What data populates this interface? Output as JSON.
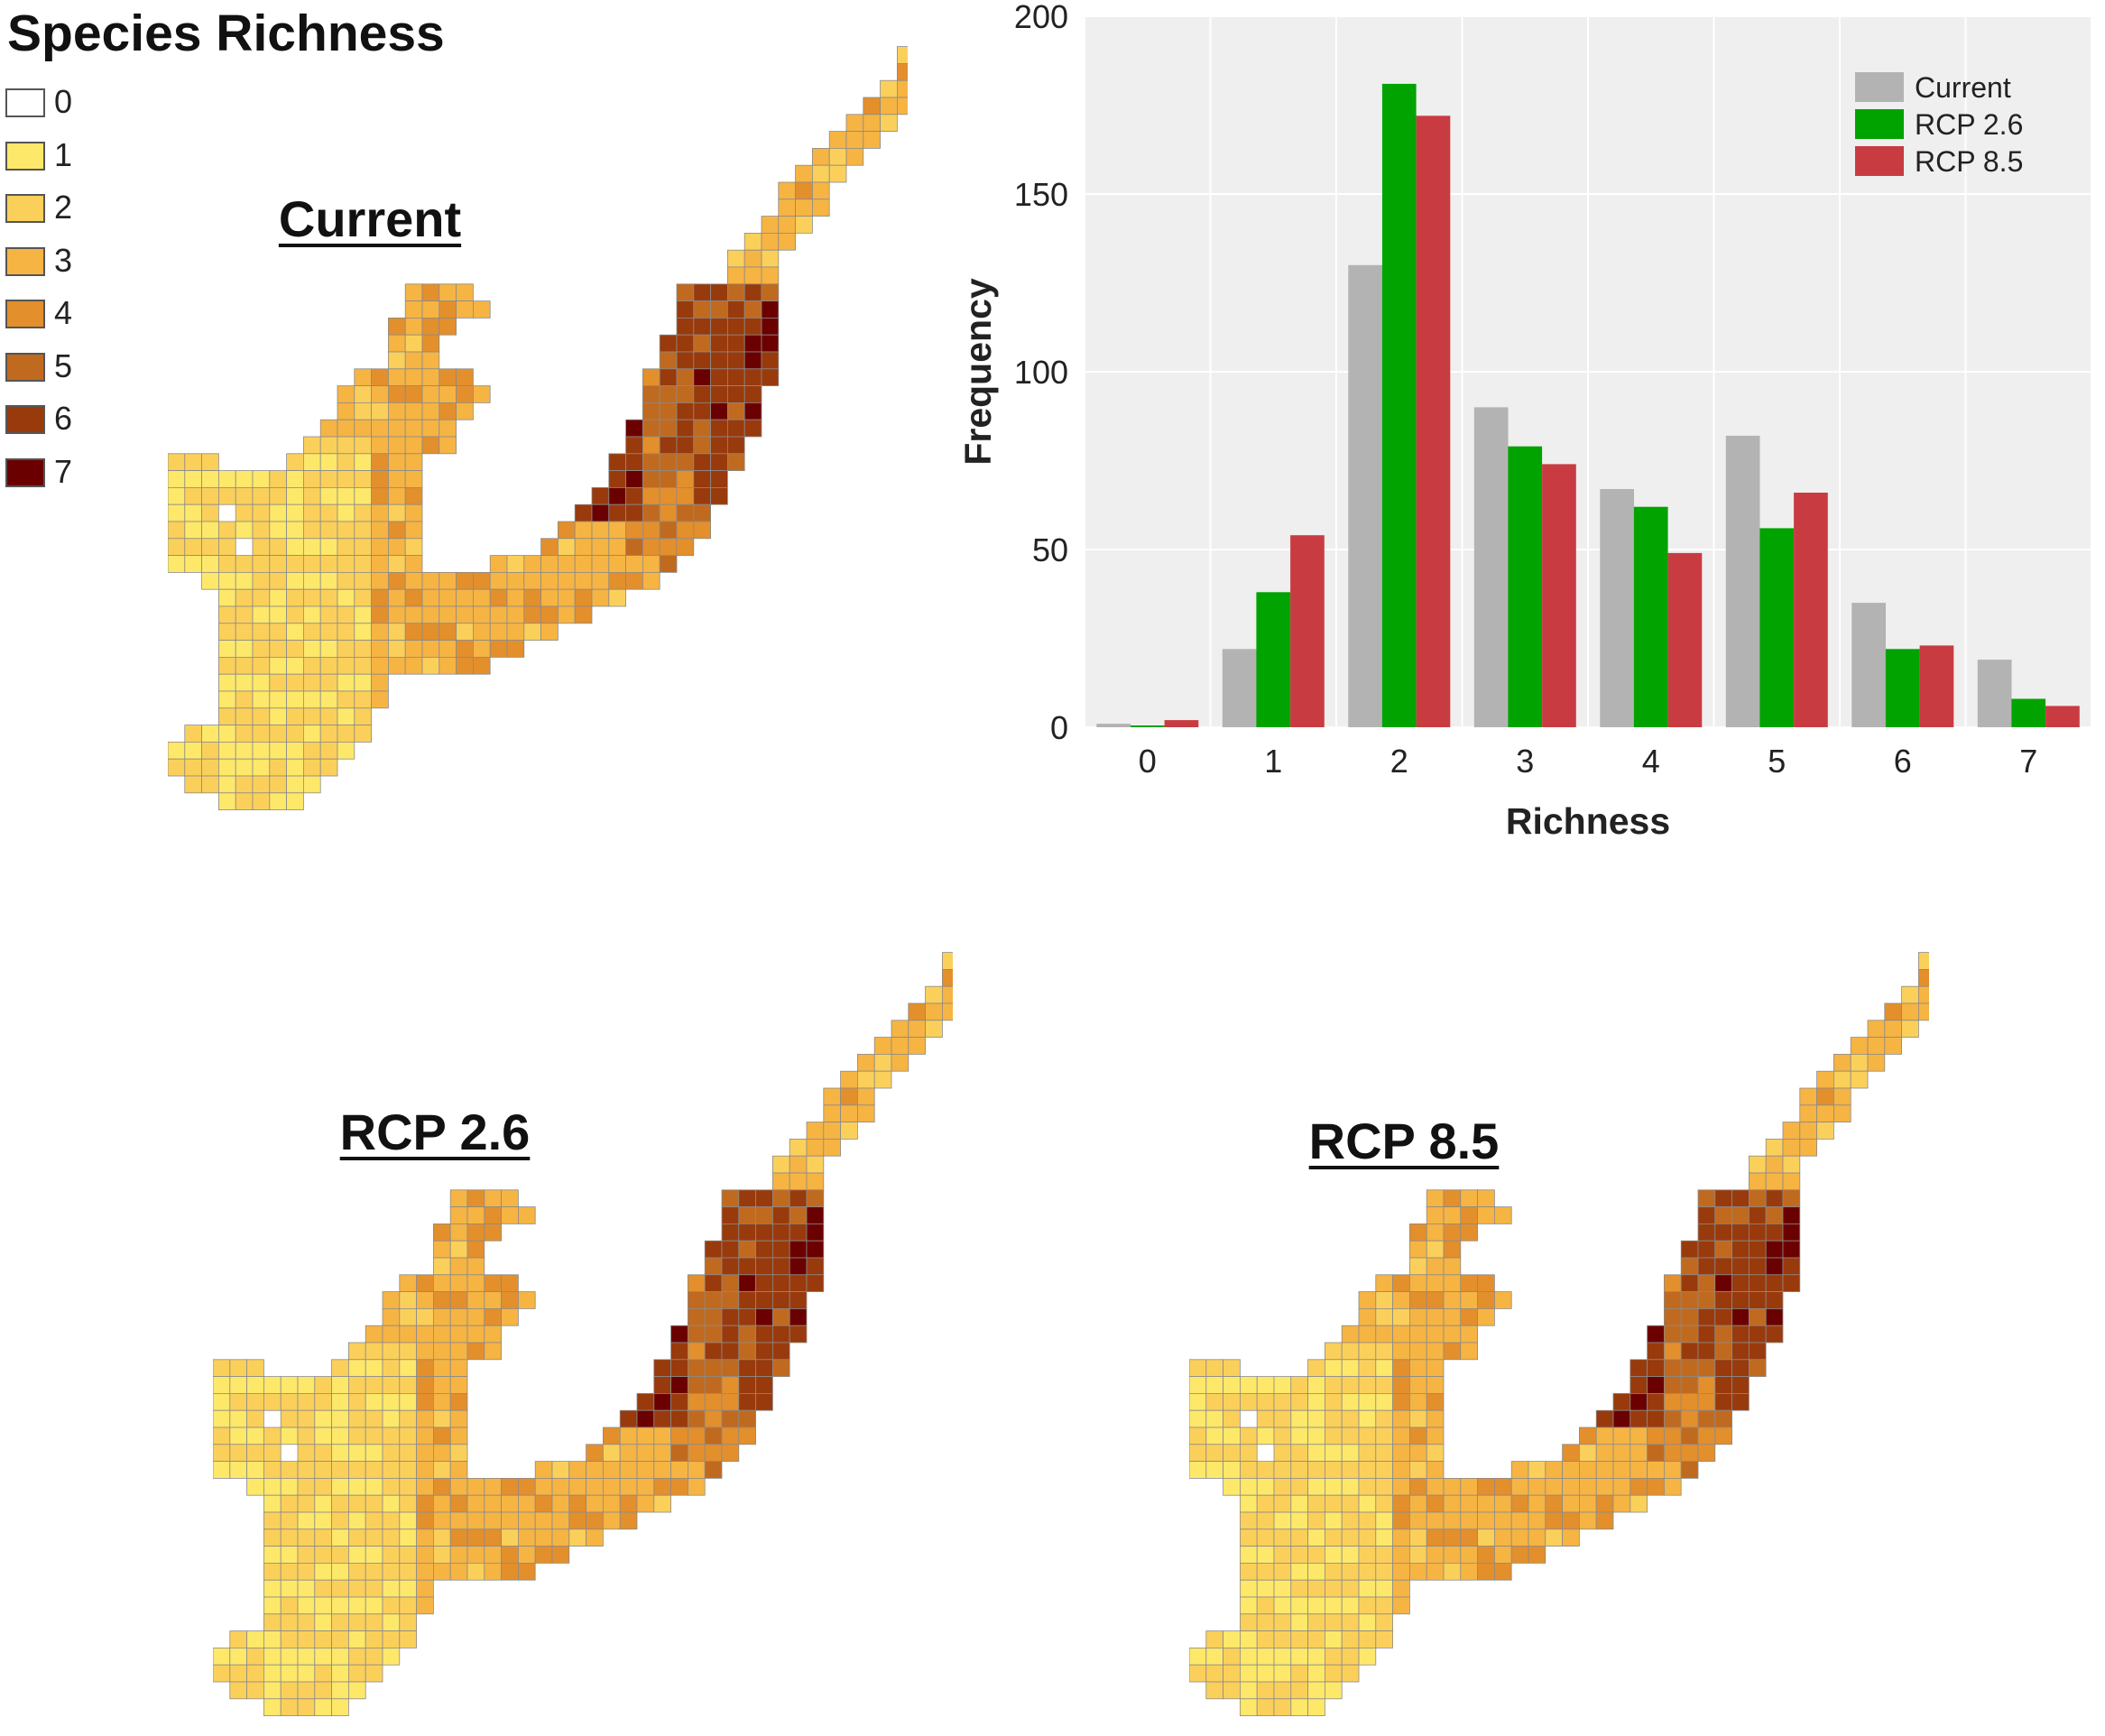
{
  "legend": {
    "title": "Species Richness",
    "entries": [
      {
        "label": "0",
        "color": "#ffffff"
      },
      {
        "label": "1",
        "color": "#fde86a"
      },
      {
        "label": "2",
        "color": "#fbd05a"
      },
      {
        "label": "3",
        "color": "#f6b443"
      },
      {
        "label": "4",
        "color": "#e38f2c"
      },
      {
        "label": "5",
        "color": "#c06a1f"
      },
      {
        "label": "6",
        "color": "#993a0c"
      },
      {
        "label": "7",
        "color": "#6b0000"
      }
    ]
  },
  "maps": [
    {
      "title": "Current",
      "bias": 0
    },
    {
      "title": "RCP 2.6",
      "bias": 0
    },
    {
      "title": "RCP 8.5",
      "bias": 0
    }
  ],
  "chart_data": {
    "type": "bar",
    "title": "",
    "xlabel": "Richness",
    "ylabel": "Frequency",
    "categories": [
      "0",
      "1",
      "2",
      "3",
      "4",
      "5",
      "6",
      "7"
    ],
    "ylim": [
      0,
      200
    ],
    "yticks": [
      "0",
      "50",
      "100",
      "150",
      "200"
    ],
    "grid": true,
    "legend_position": "top-right",
    "series": [
      {
        "name": "Current",
        "color": "#b3b3b3",
        "values": [
          1,
          22,
          130,
          90,
          67,
          82,
          35,
          19
        ]
      },
      {
        "name": "RCP 2.6",
        "color": "#00a300",
        "values": [
          0.5,
          38,
          181,
          79,
          62,
          56,
          22,
          8
        ]
      },
      {
        "name": "RCP 8.5",
        "color": "#c83c41",
        "values": [
          2,
          54,
          172,
          74,
          49,
          66,
          23,
          6
        ]
      }
    ]
  }
}
